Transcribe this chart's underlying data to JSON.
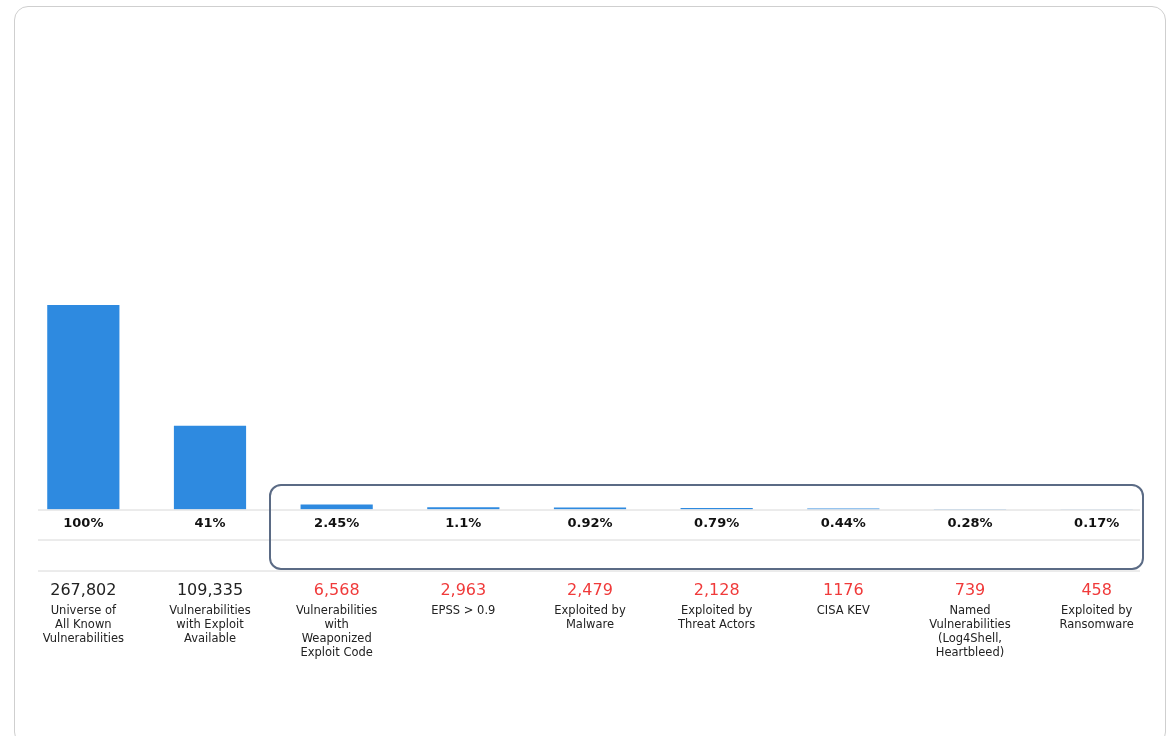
{
  "chart_data": {
    "type": "bar",
    "categories": [
      "Universe of All Known Vulnerabilities",
      "Vulnerabilities with Exploit Available",
      "Vulnerabilities with Weaponized Exploit Code",
      "EPSS > 0.9",
      "Exploited by Malware",
      "Exploited by Threat Actors",
      "CISA KEV",
      "Named Vulnerabilities (Log4Shell, Heartbleed)",
      "Exploited by Ransomware"
    ],
    "values": [
      100,
      41,
      2.45,
      1.1,
      0.92,
      0.79,
      0.44,
      0.28,
      0.17
    ],
    "color": "#2e8ae0",
    "value_labels": [
      "100%",
      "41%",
      "2.45%",
      "1.1%",
      "0.92%",
      "0.79%",
      "0.44%",
      "0.28%",
      "0.17%"
    ],
    "annotations": [
      "267,802",
      "109,335",
      "6,568",
      "2,963",
      "2,479",
      "2,128",
      "1176",
      "739",
      "458"
    ],
    "grid": false,
    "legend": false
  }
}
